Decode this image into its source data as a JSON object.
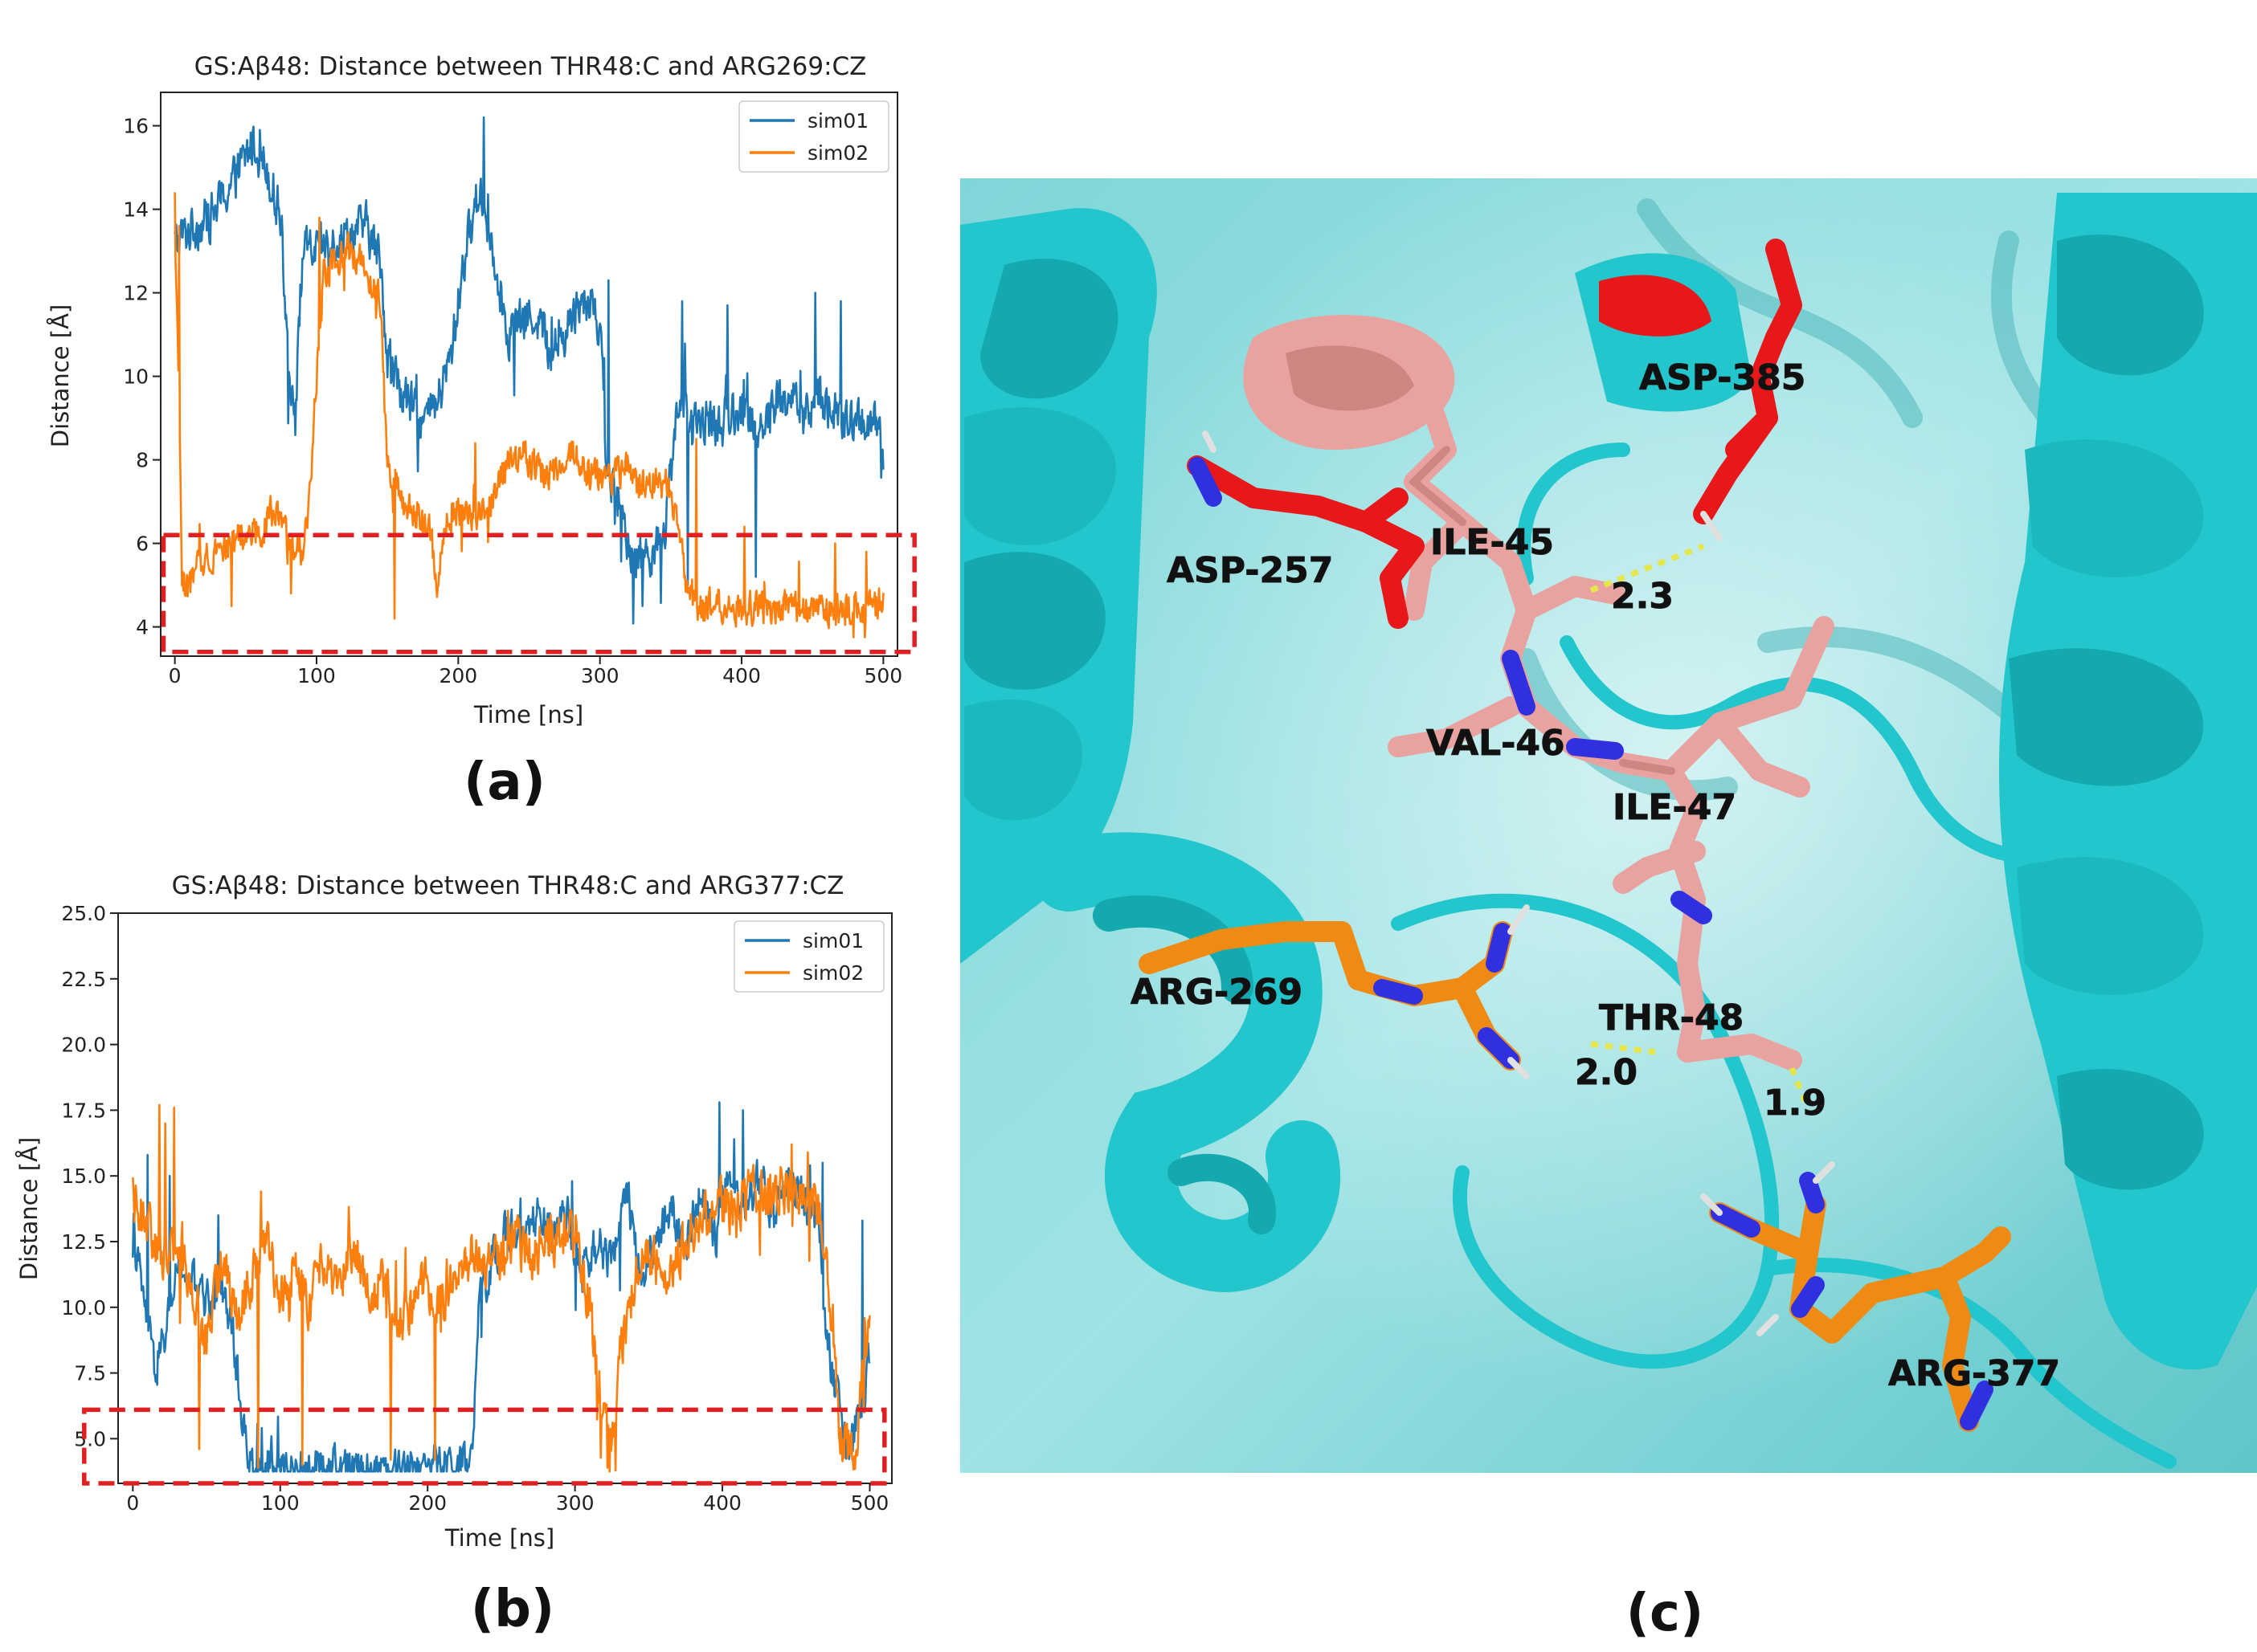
{
  "chart_data": [
    {
      "type": "line",
      "panel": "(a)",
      "title": "GS:Aβ48: Distance between THR48:C and ARG269:CZ",
      "xlabel": "Time [ns]",
      "ylabel": "Distance [Å]",
      "xlim": [
        -10,
        510
      ],
      "ylim": [
        3.3,
        16.8
      ],
      "xticks": [
        0,
        100,
        200,
        300,
        400,
        500
      ],
      "yticks": [
        4,
        6,
        8,
        10,
        12,
        14,
        16
      ],
      "legend": "top-right",
      "grid": false,
      "highlight_box": {
        "x": [
          -8,
          522
        ],
        "y": [
          3.4,
          6.2
        ],
        "color": "#e02020"
      },
      "series": [
        {
          "name": "sim01",
          "color": "#1f77b4",
          "keypoints": [
            [
              0,
              13.2
            ],
            [
              10,
              13.5
            ],
            [
              25,
              13.8
            ],
            [
              40,
              14.6
            ],
            [
              55,
              15.6
            ],
            [
              65,
              15.0
            ],
            [
              75,
              13.8
            ],
            [
              80,
              10.5
            ],
            [
              85,
              9.0
            ],
            [
              90,
              13.0
            ],
            [
              100,
              13.0
            ],
            [
              120,
              13.4
            ],
            [
              135,
              13.6
            ],
            [
              145,
              12.8
            ],
            [
              150,
              10.5
            ],
            [
              160,
              9.6
            ],
            [
              175,
              8.9
            ],
            [
              185,
              9.3
            ],
            [
              195,
              10.5
            ],
            [
              205,
              13.0
            ],
            [
              215,
              14.5
            ],
            [
              225,
              13.0
            ],
            [
              235,
              11.0
            ],
            [
              245,
              11.3
            ],
            [
              255,
              11.5
            ],
            [
              265,
              10.6
            ],
            [
              275,
              11.0
            ],
            [
              285,
              11.8
            ],
            [
              295,
              11.8
            ],
            [
              300,
              11.2
            ],
            [
              305,
              7.8
            ],
            [
              315,
              6.6
            ],
            [
              325,
              5.6
            ],
            [
              335,
              5.8
            ],
            [
              345,
              6.0
            ],
            [
              355,
              9.5
            ],
            [
              365,
              8.7
            ],
            [
              375,
              9.0
            ],
            [
              385,
              8.8
            ],
            [
              395,
              9.2
            ],
            [
              405,
              9.0
            ],
            [
              415,
              8.8
            ],
            [
              425,
              9.4
            ],
            [
              435,
              9.5
            ],
            [
              445,
              9.0
            ],
            [
              455,
              9.6
            ],
            [
              465,
              9.1
            ],
            [
              475,
              8.8
            ],
            [
              485,
              9.0
            ],
            [
              495,
              8.8
            ],
            [
              500,
              8.0
            ]
          ],
          "spikes": [
            [
              60,
              15.9
            ],
            [
              218,
              16.2
            ],
            [
              306,
              12.3
            ],
            [
              330,
              4.5
            ],
            [
              358,
              11.8
            ],
            [
              390,
              11.7
            ],
            [
              452,
              12.0
            ],
            [
              470,
              11.8
            ],
            [
              362,
              5.0
            ],
            [
              410,
              5.2
            ]
          ],
          "noise": 0.75
        },
        {
          "name": "sim02",
          "color": "#ff7f0e",
          "keypoints": [
            [
              0,
              13.2
            ],
            [
              3,
              10.0
            ],
            [
              5,
              5.0
            ],
            [
              10,
              5.0
            ],
            [
              20,
              5.6
            ],
            [
              30,
              5.9
            ],
            [
              40,
              6.0
            ],
            [
              50,
              6.2
            ],
            [
              60,
              6.3
            ],
            [
              70,
              6.8
            ],
            [
              80,
              6.0
            ],
            [
              90,
              5.8
            ],
            [
              95,
              7.0
            ],
            [
              100,
              10.0
            ],
            [
              105,
              12.5
            ],
            [
              115,
              12.8
            ],
            [
              125,
              13.0
            ],
            [
              135,
              12.6
            ],
            [
              145,
              11.8
            ],
            [
              150,
              8.0
            ],
            [
              160,
              7.0
            ],
            [
              170,
              6.6
            ],
            [
              180,
              6.4
            ],
            [
              185,
              5.0
            ],
            [
              190,
              6.4
            ],
            [
              200,
              6.9
            ],
            [
              210,
              6.5
            ],
            [
              220,
              6.8
            ],
            [
              230,
              7.6
            ],
            [
              245,
              8.2
            ],
            [
              255,
              7.8
            ],
            [
              265,
              7.6
            ],
            [
              280,
              8.2
            ],
            [
              295,
              7.6
            ],
            [
              310,
              7.6
            ],
            [
              320,
              7.8
            ],
            [
              330,
              7.3
            ],
            [
              340,
              7.5
            ],
            [
              350,
              7.3
            ],
            [
              360,
              5.2
            ],
            [
              370,
              4.4
            ],
            [
              380,
              4.5
            ],
            [
              390,
              4.6
            ],
            [
              400,
              4.4
            ],
            [
              410,
              4.5
            ],
            [
              420,
              4.4
            ],
            [
              430,
              4.5
            ],
            [
              440,
              4.4
            ],
            [
              450,
              4.5
            ],
            [
              460,
              4.4
            ],
            [
              470,
              4.4
            ],
            [
              480,
              4.5
            ],
            [
              490,
              4.4
            ],
            [
              500,
              4.5
            ]
          ],
          "spikes": [
            [
              3,
              13.6
            ],
            [
              40,
              4.5
            ],
            [
              82,
              4.8
            ],
            [
              155,
              4.2
            ],
            [
              102,
              13.8
            ],
            [
              212,
              8.4
            ],
            [
              368,
              8.5
            ],
            [
              402,
              6.4
            ],
            [
              466,
              6.0
            ],
            [
              488,
              5.8
            ]
          ],
          "noise": 0.55
        }
      ]
    },
    {
      "type": "line",
      "panel": "(b)",
      "title": "GS:Aβ48: Distance between THR48:C and ARG377:CZ",
      "xlabel": "Time [ns]",
      "ylabel": "Distance [Å]",
      "xlim": [
        -10,
        515
      ],
      "ylim": [
        3.3,
        25.0
      ],
      "xticks": [
        0,
        100,
        200,
        300,
        400,
        500
      ],
      "yticks": [
        5.0,
        7.5,
        10.0,
        12.5,
        15.0,
        17.5,
        20.0,
        22.5,
        25.0
      ],
      "legend": "top-right",
      "grid": false,
      "highlight_box": {
        "x": [
          -33,
          510
        ],
        "y": [
          3.3,
          6.1
        ],
        "color": "#e02020"
      },
      "series": [
        {
          "name": "sim01",
          "color": "#1f77b4",
          "keypoints": [
            [
              0,
              13.0
            ],
            [
              8,
              10.0
            ],
            [
              15,
              7.5
            ],
            [
              22,
              9.0
            ],
            [
              30,
              11.5
            ],
            [
              40,
              11.0
            ],
            [
              50,
              10.2
            ],
            [
              60,
              11.0
            ],
            [
              68,
              9.0
            ],
            [
              75,
              5.5
            ],
            [
              80,
              3.9
            ],
            [
              100,
              3.9
            ],
            [
              130,
              3.9
            ],
            [
              160,
              3.9
            ],
            [
              190,
              4.0
            ],
            [
              210,
              4.0
            ],
            [
              230,
              4.0
            ],
            [
              235,
              10.0
            ],
            [
              245,
              12.0
            ],
            [
              255,
              13.0
            ],
            [
              265,
              12.5
            ],
            [
              275,
              13.5
            ],
            [
              285,
              12.5
            ],
            [
              295,
              13.5
            ],
            [
              305,
              11.0
            ],
            [
              315,
              12.5
            ],
            [
              325,
              11.5
            ],
            [
              335,
              14.5
            ],
            [
              345,
              11.0
            ],
            [
              355,
              12.5
            ],
            [
              365,
              14.0
            ],
            [
              375,
              12.0
            ],
            [
              385,
              14.5
            ],
            [
              395,
              12.5
            ],
            [
              405,
              15.5
            ],
            [
              415,
              13.5
            ],
            [
              425,
              15.0
            ],
            [
              435,
              13.5
            ],
            [
              445,
              15.0
            ],
            [
              455,
              14.0
            ],
            [
              465,
              13.5
            ],
            [
              470,
              9.0
            ],
            [
              478,
              6.5
            ],
            [
              485,
              4.5
            ],
            [
              495,
              6.0
            ],
            [
              500,
              8.0
            ]
          ],
          "spikes": [
            [
              10,
              15.8
            ],
            [
              25,
              15.0
            ],
            [
              398,
              17.8
            ],
            [
              414,
              17.5
            ],
            [
              408,
              16.4
            ],
            [
              298,
              14.8
            ],
            [
              468,
              15.5
            ],
            [
              495,
              13.3
            ],
            [
              58,
              13.5
            ]
          ],
          "noise": 1.1
        },
        {
          "name": "sim02",
          "color": "#ff7f0e",
          "keypoints": [
            [
              0,
              14.5
            ],
            [
              10,
              13.0
            ],
            [
              20,
              12.0
            ],
            [
              30,
              12.5
            ],
            [
              40,
              11.0
            ],
            [
              50,
              8.5
            ],
            [
              60,
              12.0
            ],
            [
              70,
              9.5
            ],
            [
              80,
              11.0
            ],
            [
              90,
              12.5
            ],
            [
              100,
              10.5
            ],
            [
              110,
              11.5
            ],
            [
              120,
              10.0
            ],
            [
              130,
              12.0
            ],
            [
              140,
              11.0
            ],
            [
              150,
              12.5
            ],
            [
              160,
              10.5
            ],
            [
              170,
              11.0
            ],
            [
              180,
              9.5
            ],
            [
              190,
              10.0
            ],
            [
              200,
              11.0
            ],
            [
              210,
              10.0
            ],
            [
              220,
              11.5
            ],
            [
              230,
              12.0
            ],
            [
              240,
              11.5
            ],
            [
              250,
              12.0
            ],
            [
              260,
              12.5
            ],
            [
              270,
              12.0
            ],
            [
              280,
              12.5
            ],
            [
              290,
              12.5
            ],
            [
              300,
              13.0
            ],
            [
              310,
              10.0
            ],
            [
              320,
              5.5
            ],
            [
              325,
              4.8
            ],
            [
              330,
              8.0
            ],
            [
              340,
              11.0
            ],
            [
              350,
              12.0
            ],
            [
              360,
              11.5
            ],
            [
              370,
              12.0
            ],
            [
              380,
              13.0
            ],
            [
              390,
              13.5
            ],
            [
              400,
              14.0
            ],
            [
              410,
              13.5
            ],
            [
              420,
              14.5
            ],
            [
              430,
              14.0
            ],
            [
              440,
              14.5
            ],
            [
              450,
              14.0
            ],
            [
              460,
              14.5
            ],
            [
              470,
              12.5
            ],
            [
              480,
              5.0
            ],
            [
              490,
              4.5
            ],
            [
              500,
              10.0
            ]
          ],
          "spikes": [
            [
              18,
              17.7
            ],
            [
              22,
              17.0
            ],
            [
              28,
              17.6
            ],
            [
              45,
              4.6
            ],
            [
              85,
              3.9
            ],
            [
              115,
              4.0
            ],
            [
              175,
              4.2
            ],
            [
              205,
              4.2
            ],
            [
              322,
              3.9
            ],
            [
              447,
              16.2
            ],
            [
              458,
              15.9
            ]
          ],
          "noise": 1.3
        }
      ]
    }
  ],
  "figure_c": {
    "panel": "(c)",
    "residues": [
      "ASP-385",
      "ASP-257",
      "ILE-45",
      "VAL-46",
      "ILE-47",
      "ARG-269",
      "THR-48",
      "ARG-377"
    ],
    "distances": [
      "2.3",
      "2.0",
      "1.9"
    ],
    "colors": {
      "helix": "#22c6cc",
      "helix_dark": "#14a9ae",
      "background": "#6ecfd2",
      "peptide": "#e8a3a0",
      "asp": "#e8181a",
      "arg": "#ef8a15",
      "nitrogen": "#3030e0",
      "hbond": "#e6e64a"
    }
  }
}
